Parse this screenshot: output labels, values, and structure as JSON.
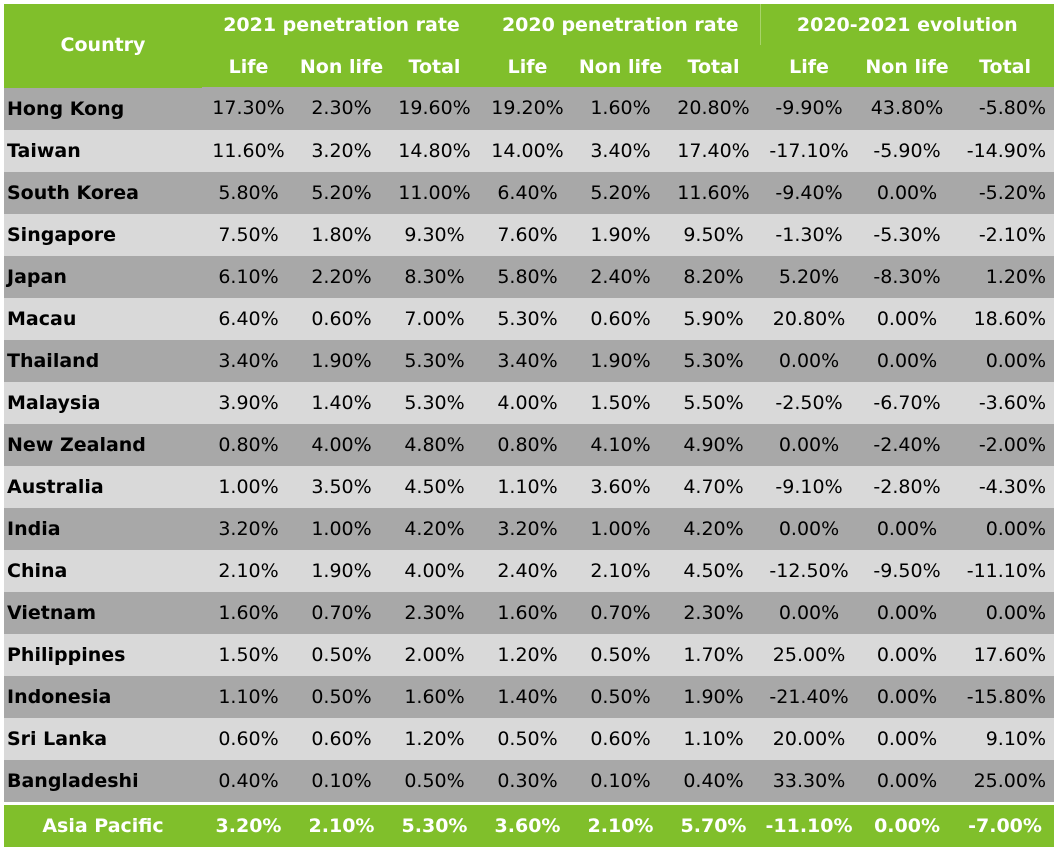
{
  "chart_data": {
    "type": "table",
    "header": {
      "country_label": "Country",
      "groups": [
        "2021 penetration rate",
        "2020 penetration rate",
        "2020-2021 evolution"
      ],
      "subcolumns": [
        "Life",
        "Non life",
        "Total"
      ]
    },
    "rows": [
      {
        "country": "Hong Kong",
        "values": [
          "17.30%",
          "2.30%",
          "19.60%",
          "19.20%",
          "1.60%",
          "20.80%",
          "-9.90%",
          "43.80%",
          "-5.80%"
        ]
      },
      {
        "country": "Taiwan",
        "values": [
          "11.60%",
          "3.20%",
          "14.80%",
          "14.00%",
          "3.40%",
          "17.40%",
          "-17.10%",
          "-5.90%",
          "-14.90%"
        ]
      },
      {
        "country": "South Korea",
        "values": [
          "5.80%",
          "5.20%",
          "11.00%",
          "6.40%",
          "5.20%",
          "11.60%",
          "-9.40%",
          "0.00%",
          "-5.20%"
        ]
      },
      {
        "country": "Singapore",
        "values": [
          "7.50%",
          "1.80%",
          "9.30%",
          "7.60%",
          "1.90%",
          "9.50%",
          "-1.30%",
          "-5.30%",
          "-2.10%"
        ]
      },
      {
        "country": "Japan",
        "values": [
          "6.10%",
          "2.20%",
          "8.30%",
          "5.80%",
          "2.40%",
          "8.20%",
          "5.20%",
          "-8.30%",
          "1.20%"
        ]
      },
      {
        "country": "Macau",
        "values": [
          "6.40%",
          "0.60%",
          "7.00%",
          "5.30%",
          "0.60%",
          "5.90%",
          "20.80%",
          "0.00%",
          "18.60%"
        ]
      },
      {
        "country": "Thailand",
        "values": [
          "3.40%",
          "1.90%",
          "5.30%",
          "3.40%",
          "1.90%",
          "5.30%",
          "0.00%",
          "0.00%",
          "0.00%"
        ]
      },
      {
        "country": "Malaysia",
        "values": [
          "3.90%",
          "1.40%",
          "5.30%",
          "4.00%",
          "1.50%",
          "5.50%",
          "-2.50%",
          "-6.70%",
          "-3.60%"
        ]
      },
      {
        "country": "New Zealand",
        "values": [
          "0.80%",
          "4.00%",
          "4.80%",
          "0.80%",
          "4.10%",
          "4.90%",
          "0.00%",
          "-2.40%",
          "-2.00%"
        ]
      },
      {
        "country": "Australia",
        "values": [
          "1.00%",
          "3.50%",
          "4.50%",
          "1.10%",
          "3.60%",
          "4.70%",
          "-9.10%",
          "-2.80%",
          "-4.30%"
        ]
      },
      {
        "country": "India",
        "values": [
          "3.20%",
          "1.00%",
          "4.20%",
          "3.20%",
          "1.00%",
          "4.20%",
          "0.00%",
          "0.00%",
          "0.00%"
        ]
      },
      {
        "country": "China",
        "values": [
          "2.10%",
          "1.90%",
          "4.00%",
          "2.40%",
          "2.10%",
          "4.50%",
          "-12.50%",
          "-9.50%",
          "-11.10%"
        ]
      },
      {
        "country": "Vietnam",
        "values": [
          "1.60%",
          "0.70%",
          "2.30%",
          "1.60%",
          "0.70%",
          "2.30%",
          "0.00%",
          "0.00%",
          "0.00%"
        ]
      },
      {
        "country": "Philippines",
        "values": [
          "1.50%",
          "0.50%",
          "2.00%",
          "1.20%",
          "0.50%",
          "1.70%",
          "25.00%",
          "0.00%",
          "17.60%"
        ]
      },
      {
        "country": "Indonesia",
        "values": [
          "1.10%",
          "0.50%",
          "1.60%",
          "1.40%",
          "0.50%",
          "1.90%",
          "-21.40%",
          "0.00%",
          "-15.80%"
        ]
      },
      {
        "country": "Sri Lanka",
        "values": [
          "0.60%",
          "0.60%",
          "1.20%",
          "0.50%",
          "0.60%",
          "1.10%",
          "20.00%",
          "0.00%",
          "9.10%"
        ]
      },
      {
        "country": "Bangladeshi",
        "values": [
          "0.40%",
          "0.10%",
          "0.50%",
          "0.30%",
          "0.10%",
          "0.40%",
          "33.30%",
          "0.00%",
          "25.00%"
        ]
      }
    ],
    "footer": {
      "country": "Asia Pacific",
      "values": [
        "3.20%",
        "2.10%",
        "5.30%",
        "3.60%",
        "2.10%",
        "5.70%",
        "-11.10%",
        "0.00%",
        "-7.00%"
      ]
    },
    "colors": {
      "header_bg": "#80bf2b",
      "row_dark": "#a8a8a8",
      "row_light": "#d9d9d9",
      "header_text": "#ffffff"
    }
  }
}
